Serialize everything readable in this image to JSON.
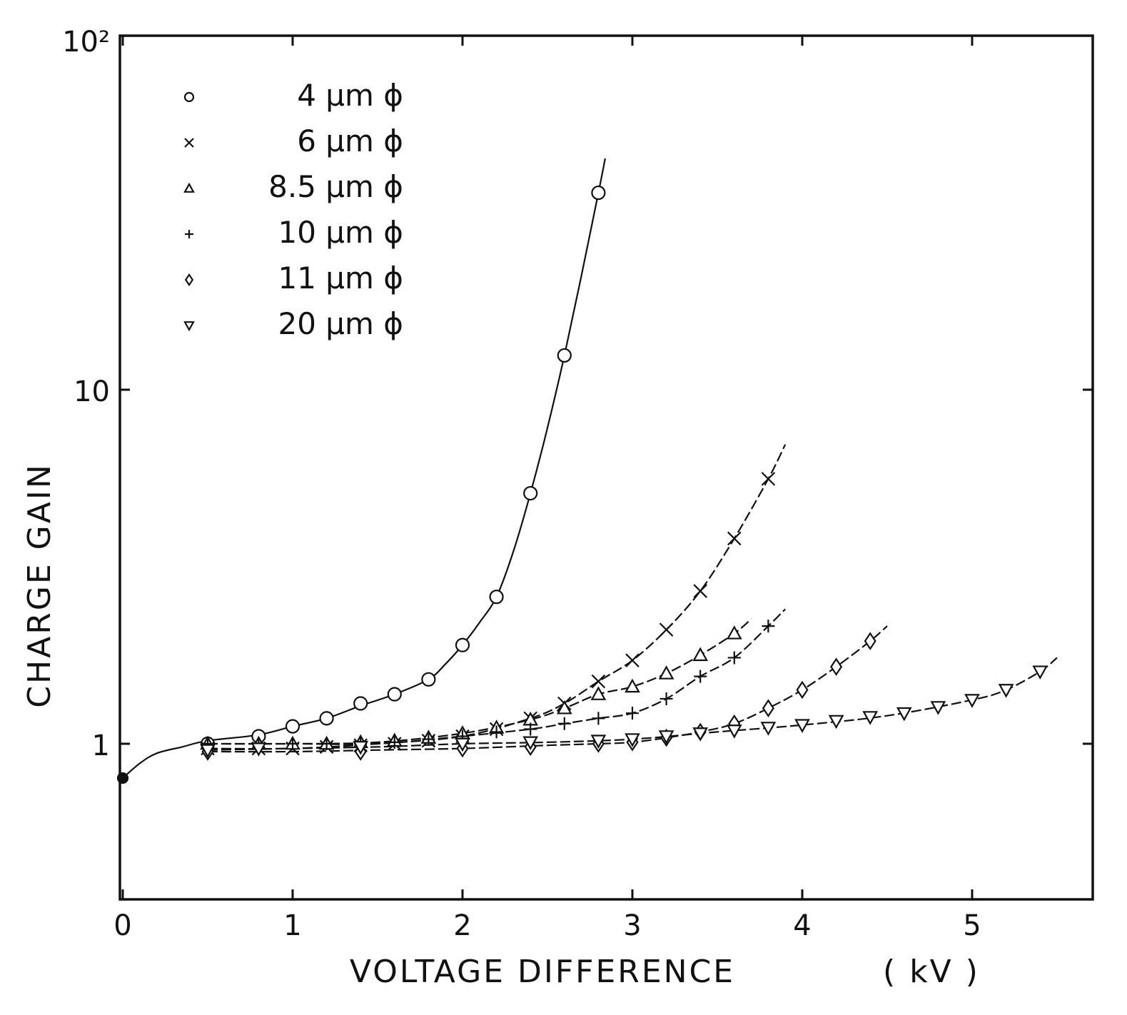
{
  "chart_data": {
    "type": "line",
    "title": "",
    "xlabel": "VOLTAGE  DIFFERENCE",
    "xunit": "( kV )",
    "ylabel": "CHARGE  GAIN",
    "xlim": [
      0,
      5.6
    ],
    "ylim": [
      0.45,
      100
    ],
    "yscale": "log",
    "grid": false,
    "legend_position": "top-left",
    "x_ticks": [
      0,
      1,
      2,
      3,
      4,
      5
    ],
    "x_tick_labels": [
      "0",
      "1",
      "2",
      "3",
      "4",
      "5"
    ],
    "y_ticks": [
      1,
      10,
      100
    ],
    "y_tick_labels": [
      "1",
      "10",
      "10²"
    ],
    "series": [
      {
        "name": "4 μm ϕ",
        "marker": "circle",
        "x": [
          0.5,
          0.8,
          1.0,
          1.2,
          1.4,
          1.6,
          1.8,
          2.0,
          2.2,
          2.4,
          2.6,
          2.8
        ],
        "y": [
          1.0,
          1.05,
          1.12,
          1.18,
          1.3,
          1.38,
          1.52,
          1.9,
          2.6,
          5.1,
          12.5,
          36
        ],
        "curve": {
          "x": [
            0,
            0.1,
            0.2,
            0.35,
            0.5,
            0.8,
            1.0,
            1.2,
            1.4,
            1.6,
            1.8,
            1.9,
            2.0,
            2.1,
            2.2,
            2.3,
            2.4,
            2.5,
            2.6,
            2.7,
            2.8,
            2.84
          ],
          "y": [
            0.8,
            0.88,
            0.94,
            0.98,
            1.02,
            1.06,
            1.12,
            1.18,
            1.28,
            1.38,
            1.52,
            1.68,
            1.9,
            2.2,
            2.6,
            3.5,
            5.1,
            7.8,
            12.5,
            21,
            36,
            45
          ]
        }
      },
      {
        "name": "6 μm ϕ",
        "marker": "x",
        "x": [
          0.5,
          0.8,
          1.0,
          1.2,
          1.4,
          1.6,
          1.8,
          2.0,
          2.2,
          2.4,
          2.6,
          2.8,
          3.0,
          3.2,
          3.4,
          3.6,
          3.8
        ],
        "y": [
          0.97,
          0.97,
          0.97,
          0.98,
          0.99,
          1.0,
          1.02,
          1.05,
          1.1,
          1.18,
          1.3,
          1.5,
          1.72,
          2.1,
          2.7,
          3.8,
          5.6
        ],
        "curve": {
          "x": [
            0.5,
            1.0,
            1.5,
            2.0,
            2.4,
            2.6,
            2.8,
            3.0,
            3.2,
            3.4,
            3.6,
            3.8,
            3.9
          ],
          "y": [
            0.97,
            0.97,
            1.0,
            1.05,
            1.18,
            1.3,
            1.5,
            1.72,
            2.1,
            2.7,
            3.8,
            5.6,
            7.0
          ]
        }
      },
      {
        "name": "8.5 μm ϕ",
        "marker": "triangle-up",
        "x": [
          0.5,
          0.8,
          1.0,
          1.2,
          1.4,
          1.6,
          1.8,
          2.0,
          2.2,
          2.4,
          2.6,
          2.8,
          3.0,
          3.2,
          3.4,
          3.6
        ],
        "y": [
          1.0,
          1.0,
          1.0,
          1.0,
          1.01,
          1.02,
          1.04,
          1.07,
          1.11,
          1.17,
          1.26,
          1.38,
          1.45,
          1.58,
          1.78,
          2.05
        ],
        "curve": {
          "x": [
            0.5,
            1.0,
            1.5,
            2.0,
            2.4,
            2.6,
            2.8,
            3.0,
            3.2,
            3.4,
            3.6,
            3.7
          ],
          "y": [
            1.0,
            1.0,
            1.01,
            1.07,
            1.17,
            1.26,
            1.38,
            1.45,
            1.58,
            1.78,
            2.05,
            2.25
          ]
        }
      },
      {
        "name": "10 μm ϕ",
        "marker": "plus",
        "x": [
          0.5,
          0.8,
          1.0,
          1.2,
          1.4,
          1.6,
          1.8,
          2.0,
          2.2,
          2.4,
          2.6,
          2.8,
          3.0,
          3.2,
          3.4,
          3.6,
          3.8
        ],
        "y": [
          1.0,
          1.0,
          1.0,
          1.0,
          1.0,
          1.01,
          1.03,
          1.05,
          1.08,
          1.1,
          1.14,
          1.18,
          1.22,
          1.34,
          1.55,
          1.75,
          2.15
        ],
        "curve": {
          "x": [
            0.5,
            1.0,
            1.5,
            2.0,
            2.4,
            2.6,
            2.8,
            3.0,
            3.2,
            3.4,
            3.6,
            3.8,
            3.9
          ],
          "y": [
            1.0,
            1.0,
            1.0,
            1.05,
            1.1,
            1.14,
            1.18,
            1.22,
            1.34,
            1.55,
            1.75,
            2.15,
            2.4
          ]
        }
      },
      {
        "name": "11 μm ϕ",
        "marker": "diamond",
        "x": [
          0.5,
          1.4,
          2.0,
          2.4,
          2.8,
          3.0,
          3.2,
          3.4,
          3.6,
          3.8,
          4.0,
          4.2,
          4.4
        ],
        "y": [
          0.95,
          0.95,
          0.97,
          0.98,
          1.0,
          1.01,
          1.04,
          1.08,
          1.14,
          1.26,
          1.42,
          1.65,
          1.95
        ],
        "curve": {
          "x": [
            0.5,
            1.0,
            1.5,
            2.0,
            2.5,
            2.8,
            3.0,
            3.2,
            3.4,
            3.6,
            3.8,
            4.0,
            4.2,
            4.4,
            4.5
          ],
          "y": [
            0.95,
            0.95,
            0.96,
            0.97,
            0.99,
            1.0,
            1.01,
            1.04,
            1.08,
            1.14,
            1.26,
            1.42,
            1.65,
            1.95,
            2.15
          ]
        }
      },
      {
        "name": "20 μm ϕ",
        "marker": "triangle-down",
        "x": [
          0.5,
          0.8,
          1.4,
          2.0,
          2.4,
          2.8,
          3.0,
          3.2,
          3.4,
          3.6,
          3.8,
          4.0,
          4.2,
          4.4,
          4.6,
          4.8,
          5.0,
          5.2,
          5.4
        ],
        "y": [
          0.96,
          0.97,
          0.98,
          1.0,
          1.01,
          1.02,
          1.03,
          1.05,
          1.07,
          1.09,
          1.11,
          1.13,
          1.16,
          1.19,
          1.22,
          1.27,
          1.33,
          1.42,
          1.6
        ],
        "curve": {
          "x": [
            0.5,
            1.0,
            1.5,
            2.0,
            2.5,
            3.0,
            3.5,
            4.0,
            4.5,
            5.0,
            5.2,
            5.4,
            5.5
          ],
          "y": [
            0.96,
            0.97,
            0.98,
            1.0,
            1.01,
            1.03,
            1.08,
            1.13,
            1.2,
            1.33,
            1.42,
            1.6,
            1.75
          ]
        }
      }
    ]
  }
}
